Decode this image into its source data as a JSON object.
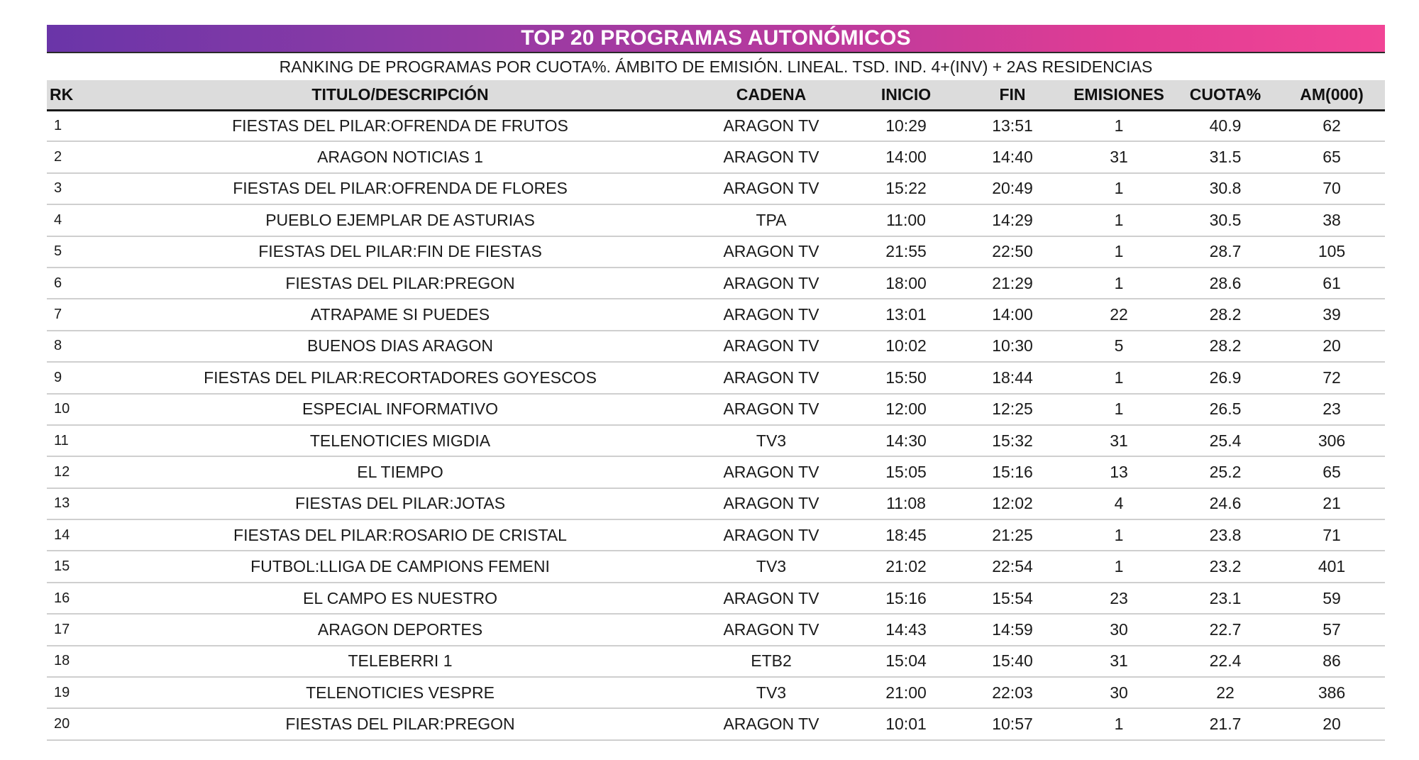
{
  "title": "TOP 20 PROGRAMAS AUTONÓMICOS",
  "subtitle": "RANKING DE PROGRAMAS POR CUOTA%. ÁMBITO DE EMISIÓN. LINEAL. TSD. IND. 4+(INV) + 2AS RESIDENCIAS",
  "columns": {
    "rk": "RK",
    "titulo": "TITULO/DESCRIPCIÓN",
    "cadena": "CADENA",
    "inicio": "INICIO",
    "fin": "FIN",
    "emisiones": "EMISIONES",
    "cuota": "CUOTA%",
    "am": "AM(000)"
  },
  "colors": {
    "banner_start": "#6a35a8",
    "banner_end": "#f14596",
    "header_bg": "#dcdcdc"
  },
  "rows": [
    {
      "rk": "1",
      "titulo": "FIESTAS DEL PILAR:OFRENDA DE FRUTOS",
      "cadena": "ARAGON TV",
      "inicio": "10:29",
      "fin": "13:51",
      "emisiones": "1",
      "cuota": "40.9",
      "am": "62"
    },
    {
      "rk": "2",
      "titulo": "ARAGON NOTICIAS 1",
      "cadena": "ARAGON TV",
      "inicio": "14:00",
      "fin": "14:40",
      "emisiones": "31",
      "cuota": "31.5",
      "am": "65"
    },
    {
      "rk": "3",
      "titulo": "FIESTAS DEL PILAR:OFRENDA DE FLORES",
      "cadena": "ARAGON TV",
      "inicio": "15:22",
      "fin": "20:49",
      "emisiones": "1",
      "cuota": "30.8",
      "am": "70"
    },
    {
      "rk": "4",
      "titulo": "PUEBLO EJEMPLAR DE ASTURIAS",
      "cadena": "TPA",
      "inicio": "11:00",
      "fin": "14:29",
      "emisiones": "1",
      "cuota": "30.5",
      "am": "38"
    },
    {
      "rk": "5",
      "titulo": "FIESTAS DEL PILAR:FIN DE FIESTAS",
      "cadena": "ARAGON TV",
      "inicio": "21:55",
      "fin": "22:50",
      "emisiones": "1",
      "cuota": "28.7",
      "am": "105"
    },
    {
      "rk": "6",
      "titulo": "FIESTAS DEL PILAR:PREGON",
      "cadena": "ARAGON TV",
      "inicio": "18:00",
      "fin": "21:29",
      "emisiones": "1",
      "cuota": "28.6",
      "am": "61"
    },
    {
      "rk": "7",
      "titulo": "ATRAPAME SI PUEDES",
      "cadena": "ARAGON TV",
      "inicio": "13:01",
      "fin": "14:00",
      "emisiones": "22",
      "cuota": "28.2",
      "am": "39"
    },
    {
      "rk": "8",
      "titulo": "BUENOS DIAS ARAGON",
      "cadena": "ARAGON TV",
      "inicio": "10:02",
      "fin": "10:30",
      "emisiones": "5",
      "cuota": "28.2",
      "am": "20"
    },
    {
      "rk": "9",
      "titulo": "FIESTAS DEL PILAR:RECORTADORES GOYESCOS",
      "cadena": "ARAGON TV",
      "inicio": "15:50",
      "fin": "18:44",
      "emisiones": "1",
      "cuota": "26.9",
      "am": "72"
    },
    {
      "rk": "10",
      "titulo": "ESPECIAL INFORMATIVO",
      "cadena": "ARAGON TV",
      "inicio": "12:00",
      "fin": "12:25",
      "emisiones": "1",
      "cuota": "26.5",
      "am": "23"
    },
    {
      "rk": "11",
      "titulo": "TELENOTICIES MIGDIA",
      "cadena": "TV3",
      "inicio": "14:30",
      "fin": "15:32",
      "emisiones": "31",
      "cuota": "25.4",
      "am": "306"
    },
    {
      "rk": "12",
      "titulo": "EL TIEMPO",
      "cadena": "ARAGON TV",
      "inicio": "15:05",
      "fin": "15:16",
      "emisiones": "13",
      "cuota": "25.2",
      "am": "65"
    },
    {
      "rk": "13",
      "titulo": "FIESTAS DEL PILAR:JOTAS",
      "cadena": "ARAGON TV",
      "inicio": "11:08",
      "fin": "12:02",
      "emisiones": "4",
      "cuota": "24.6",
      "am": "21"
    },
    {
      "rk": "14",
      "titulo": "FIESTAS DEL PILAR:ROSARIO DE CRISTAL",
      "cadena": "ARAGON TV",
      "inicio": "18:45",
      "fin": "21:25",
      "emisiones": "1",
      "cuota": "23.8",
      "am": "71"
    },
    {
      "rk": "15",
      "titulo": "FUTBOL:LLIGA DE CAMPIONS FEMENI",
      "cadena": "TV3",
      "inicio": "21:02",
      "fin": "22:54",
      "emisiones": "1",
      "cuota": "23.2",
      "am": "401"
    },
    {
      "rk": "16",
      "titulo": "EL CAMPO ES NUESTRO",
      "cadena": "ARAGON TV",
      "inicio": "15:16",
      "fin": "15:54",
      "emisiones": "23",
      "cuota": "23.1",
      "am": "59"
    },
    {
      "rk": "17",
      "titulo": "ARAGON DEPORTES",
      "cadena": "ARAGON TV",
      "inicio": "14:43",
      "fin": "14:59",
      "emisiones": "30",
      "cuota": "22.7",
      "am": "57"
    },
    {
      "rk": "18",
      "titulo": "TELEBERRI 1",
      "cadena": "ETB2",
      "inicio": "15:04",
      "fin": "15:40",
      "emisiones": "31",
      "cuota": "22.4",
      "am": "86"
    },
    {
      "rk": "19",
      "titulo": "TELENOTICIES VESPRE",
      "cadena": "TV3",
      "inicio": "21:00",
      "fin": "22:03",
      "emisiones": "30",
      "cuota": "22",
      "am": "386"
    },
    {
      "rk": "20",
      "titulo": "FIESTAS DEL PILAR:PREGON",
      "cadena": "ARAGON TV",
      "inicio": "10:01",
      "fin": "10:57",
      "emisiones": "1",
      "cuota": "21.7",
      "am": "20"
    }
  ]
}
